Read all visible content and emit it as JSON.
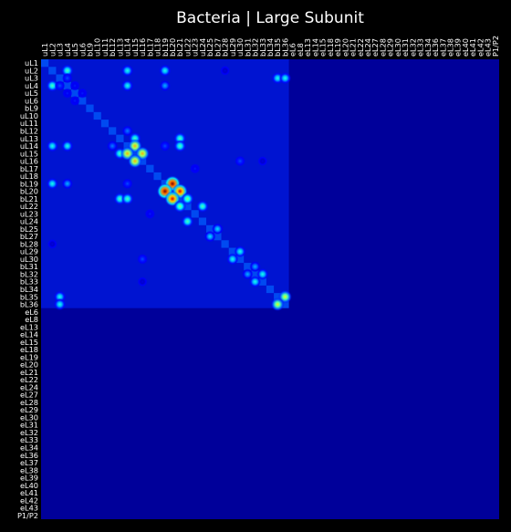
{
  "chart_data": {
    "type": "heatmap",
    "title": "Bacteria | Large Subunit",
    "xlabel": "",
    "ylabel": "",
    "colormap": "jet",
    "background": "#000000",
    "x_tick_position": "top",
    "labels": [
      "uL1",
      "uL2",
      "uL3",
      "uL4",
      "uL5",
      "uL6",
      "bL9",
      "uL10",
      "uL11",
      "bL12",
      "uL13",
      "uL14",
      "uL15",
      "uL16",
      "bL17",
      "uL18",
      "bL19",
      "bL20",
      "bL21",
      "uL22",
      "uL23",
      "uL24",
      "bL25",
      "bL27",
      "bL28",
      "uL29",
      "uL30",
      "bL31",
      "bL32",
      "bL33",
      "bL34",
      "bL35",
      "bL36",
      "eL6",
      "eL8",
      "eL13",
      "eL14",
      "eL15",
      "eL18",
      "eL19",
      "eL20",
      "eL21",
      "eL22",
      "eL24",
      "eL27",
      "eL28",
      "eL29",
      "eL30",
      "eL31",
      "eL32",
      "eL33",
      "eL34",
      "eL36",
      "eL37",
      "eL38",
      "eL39",
      "eL40",
      "eL41",
      "eL42",
      "eL43",
      "P1/P2"
    ],
    "hotspots": [
      {
        "row": "uL4",
        "col": "uL2",
        "value": 0.45
      },
      {
        "row": "uL4",
        "col": "uL14",
        "value": 0.4
      },
      {
        "row": "uL4",
        "col": "bL19",
        "value": 0.3
      },
      {
        "row": "uL3",
        "col": "uL4",
        "value": 0.2
      },
      {
        "row": "uL4",
        "col": "uL5",
        "value": 0.15
      },
      {
        "row": "uL5",
        "col": "uL6",
        "value": 0.15
      },
      {
        "row": "bL12",
        "col": "uL14",
        "value": 0.25
      },
      {
        "row": "uL13",
        "col": "uL15",
        "value": 0.45
      },
      {
        "row": "uL13",
        "col": "bL21",
        "value": 0.45
      },
      {
        "row": "uL14",
        "col": "uL2",
        "value": 0.4
      },
      {
        "row": "uL14",
        "col": "uL15",
        "value": 0.7
      },
      {
        "row": "uL15",
        "col": "uL16",
        "value": 0.7
      },
      {
        "row": "uL14",
        "col": "bL19",
        "value": 0.2
      },
      {
        "row": "uL16",
        "col": "uL30",
        "value": 0.2
      },
      {
        "row": "bL17",
        "col": "uL23",
        "value": 0.15
      },
      {
        "row": "bL19",
        "col": "bL20",
        "value": 1.0
      },
      {
        "row": "bL20",
        "col": "bL21",
        "value": 0.9
      },
      {
        "row": "bL19",
        "col": "uL2",
        "value": 0.4
      },
      {
        "row": "bL21",
        "col": "uL14",
        "value": 0.45
      },
      {
        "row": "bL21",
        "col": "uL22",
        "value": 0.5
      },
      {
        "row": "uL22",
        "col": "uL24",
        "value": 0.45
      },
      {
        "row": "bL25",
        "col": "bL27",
        "value": 0.35
      },
      {
        "row": "uL29",
        "col": "uL30",
        "value": 0.4
      },
      {
        "row": "bL31",
        "col": "bL32",
        "value": 0.3
      },
      {
        "row": "bL32",
        "col": "bL33",
        "value": 0.4
      },
      {
        "row": "bL35",
        "col": "bL36",
        "value": 0.6
      },
      {
        "row": "bL35",
        "col": "uL3",
        "value": 0.4
      },
      {
        "row": "uL3",
        "col": "bL36",
        "value": 0.4
      },
      {
        "row": "bL33",
        "col": "uL16",
        "value": 0.1
      },
      {
        "row": "bL28",
        "col": "uL2",
        "value": 0.1
      }
    ]
  }
}
